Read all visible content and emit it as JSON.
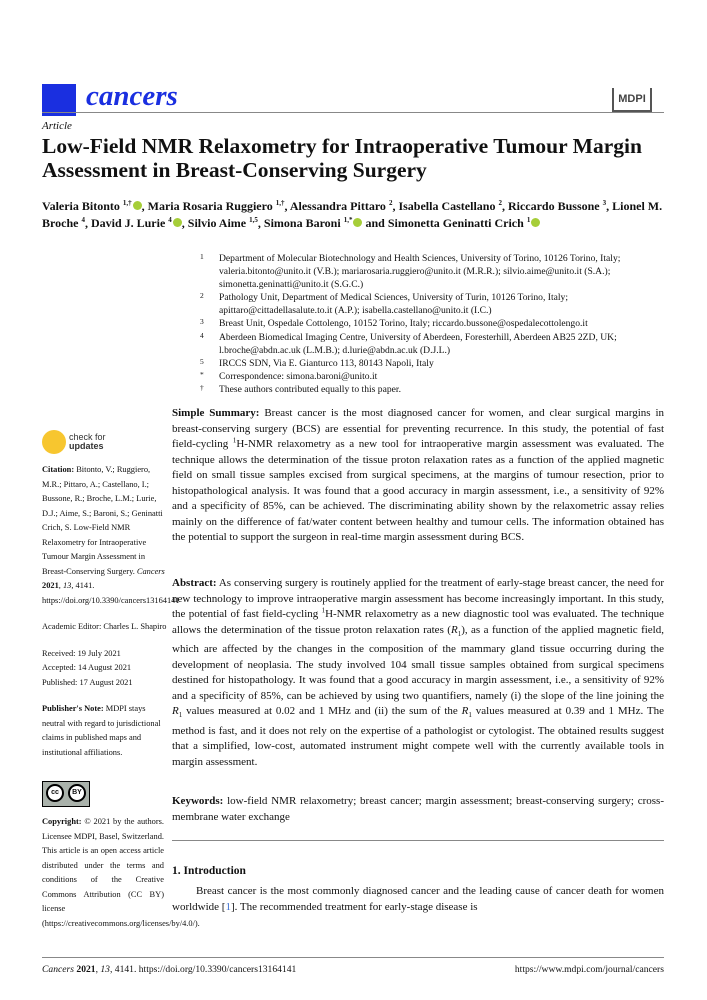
{
  "header": {
    "journal_name": "cancers",
    "publisher_logo": "MDPI",
    "article_type": "Article",
    "title": "Low-Field NMR Relaxometry for Intraoperative Tumour Margin Assessment in Breast-Conserving Surgery"
  },
  "authors": [
    {
      "name": "Valeria Bitonto",
      "sup": "1,†",
      "orcid": true
    },
    {
      "name": "Maria Rosaria Ruggiero",
      "sup": "1,†",
      "orcid": false
    },
    {
      "name": "Alessandra Pittaro",
      "sup": "2",
      "orcid": false
    },
    {
      "name": "Isabella Castellano",
      "sup": "2",
      "orcid": false
    },
    {
      "name": "Riccardo Bussone",
      "sup": "3",
      "orcid": false
    },
    {
      "name": "Lionel M. Broche",
      "sup": "4",
      "orcid": false
    },
    {
      "name": "David J. Lurie",
      "sup": "4",
      "orcid": true
    },
    {
      "name": "Silvio Aime",
      "sup": "1,5",
      "orcid": false
    },
    {
      "name": "Simona Baroni",
      "sup": "1,*",
      "orcid": true
    },
    {
      "name": "Simonetta Geninatti Crich",
      "sup": "1",
      "orcid": true
    }
  ],
  "author_joiner": "and",
  "affiliations": [
    {
      "mark": "1",
      "text": "Department of Molecular Biotechnology and Health Sciences, University of Torino, 10126 Torino, Italy; valeria.bitonto@unito.it (V.B.); mariarosaria.ruggiero@unito.it (M.R.R.); silvio.aime@unito.it (S.A.); simonetta.geninatti@unito.it (S.G.C.)"
    },
    {
      "mark": "2",
      "text": "Pathology Unit, Department of Medical Sciences, University of Turin, 10126 Torino, Italy; apittaro@cittadellasalute.to.it (A.P.); isabella.castellano@unito.it (I.C.)"
    },
    {
      "mark": "3",
      "text": "Breast Unit, Ospedale Cottolengo, 10152 Torino, Italy; riccardo.bussone@ospedalecottolengo.it"
    },
    {
      "mark": "4",
      "text": "Aberdeen Biomedical Imaging Centre, University of Aberdeen, Foresterhill, Aberdeen AB25 2ZD, UK; l.broche@abdn.ac.uk (L.M.B.); d.lurie@abdn.ac.uk (D.J.L.)"
    },
    {
      "mark": "5",
      "text": "IRCCS SDN, Via E. Gianturco 113, 80143 Napoli, Italy"
    },
    {
      "mark": "*",
      "text": "Correspondence: simona.baroni@unito.it"
    },
    {
      "mark": "†",
      "text": "These authors contributed equally to this paper."
    }
  ],
  "simple_summary": {
    "label": "Simple Summary:",
    "text_1": " Breast cancer is the most diagnosed cancer for women, and clear surgical margins in breast-conserving surgery (BCS) are essential for preventing recurrence. In this study, the potential of fast field-cycling ",
    "sup": "1",
    "text_2": "H-NMR relaxometry as a new tool for intraoperative margin assessment was evaluated. The technique allows the determination of the tissue proton relaxation rates as a function of the applied magnetic field on small tissue samples excised from surgical specimens, at the margins of tumour resection, prior to histopathological analysis. It was found that a good accuracy in margin assessment, i.e., a sensitivity of 92% and a specificity of 85%, can be achieved. The discriminating ability shown by the relaxometric assay relies mainly on the difference of fat/water content between healthy and tumour cells. The information obtained has the potential to support the surgeon in real-time margin assessment during BCS."
  },
  "abstract": {
    "label": "Abstract:",
    "text_1": " As conserving surgery is routinely applied for the treatment of early-stage breast cancer, the need for new technology to improve intraoperative margin assessment has become increasingly important. In this study, the potential of fast field-cycling ",
    "sup": "1",
    "text_2": "H-NMR relaxometry as a new diagnostic tool was evaluated. The technique allows the determination of the tissue proton relaxation rates (",
    "r1": "R",
    "r1_sub": "1",
    "text_3": "), as a function of the applied magnetic field, which are affected by the changes in the composition of the mammary gland tissue occurring during the development of neoplasia. The study involved 104 small tissue samples obtained from surgical specimens destined for histopathology. It was found that a good accuracy in margin assessment, i.e., a sensitivity of 92% and a specificity of 85%, can be achieved by using two quantifiers, namely (i) the slope of the line joining the ",
    "text_4": " values measured at 0.02 and 1 MHz and (ii) the sum of the ",
    "text_5": " values measured at 0.39 and 1 MHz. The method is fast, and it does not rely on the expertise of a pathologist or cytologist. The obtained results suggest that a simplified, low-cost, automated instrument might compete well with the currently available tools in margin assessment."
  },
  "keywords": {
    "label": "Keywords:",
    "text": " low-field NMR relaxometry; breast cancer; margin assessment; breast-conserving surgery; cross-membrane water exchange"
  },
  "introduction": {
    "heading": "1. Introduction",
    "text_1": "Breast cancer is the most commonly diagnosed cancer and the leading cause of cancer death for women worldwide [",
    "ref": "1",
    "text_2": "]. The recommended treatment for early-stage disease is"
  },
  "sidebar": {
    "check_updates_line1": "check for",
    "check_updates_line2": "updates",
    "citation_label": "Citation:",
    "citation_text": " Bitonto, V.; Ruggiero, M.R.; Pittaro, A.; Castellano, I.; Bussone, R.; Broche, L.M.; Lurie, D.J.; Aime, S.; Baroni, S.; Geninatti Crich, S. Low-Field NMR Relaxometry for Intraoperative Tumour Margin Assessment in Breast-Conserving Surgery. ",
    "citation_journal": "Cancers",
    "citation_year": "2021",
    "citation_volume": "13",
    "citation_rest": ", 4141. https://doi.org/10.3390/cancers13164141",
    "academic_editor": "Academic Editor: Charles L. Shapiro",
    "received": "Received: 19 July 2021",
    "accepted": "Accepted: 14 August 2021",
    "published": "Published: 17 August 2021",
    "publisher_note_label": "Publisher's Note:",
    "publisher_note_text": " MDPI stays neutral with regard to jurisdictional claims in published maps and institutional affiliations.",
    "cc_badge_cc": "cc",
    "cc_badge_by": "BY",
    "copyright_label": "Copyright:",
    "copyright_text": " © 2021 by the authors. Licensee MDPI, Basel, Switzerland. This article is an open access article distributed under the terms and conditions of the Creative Commons Attribution (CC BY) license (https://creativecommons.org/licenses/by/4.0/)."
  },
  "footer": {
    "journal": "Cancers",
    "year": "2021",
    "volume": "13",
    "rest": ", 4141. https://doi.org/10.3390/cancers13164141",
    "url": "https://www.mdpi.com/journal/cancers"
  },
  "colors": {
    "journal_blue": "#1a2fe0",
    "orcid_green": "#a6ce39",
    "link_blue": "#3b6fd1"
  }
}
